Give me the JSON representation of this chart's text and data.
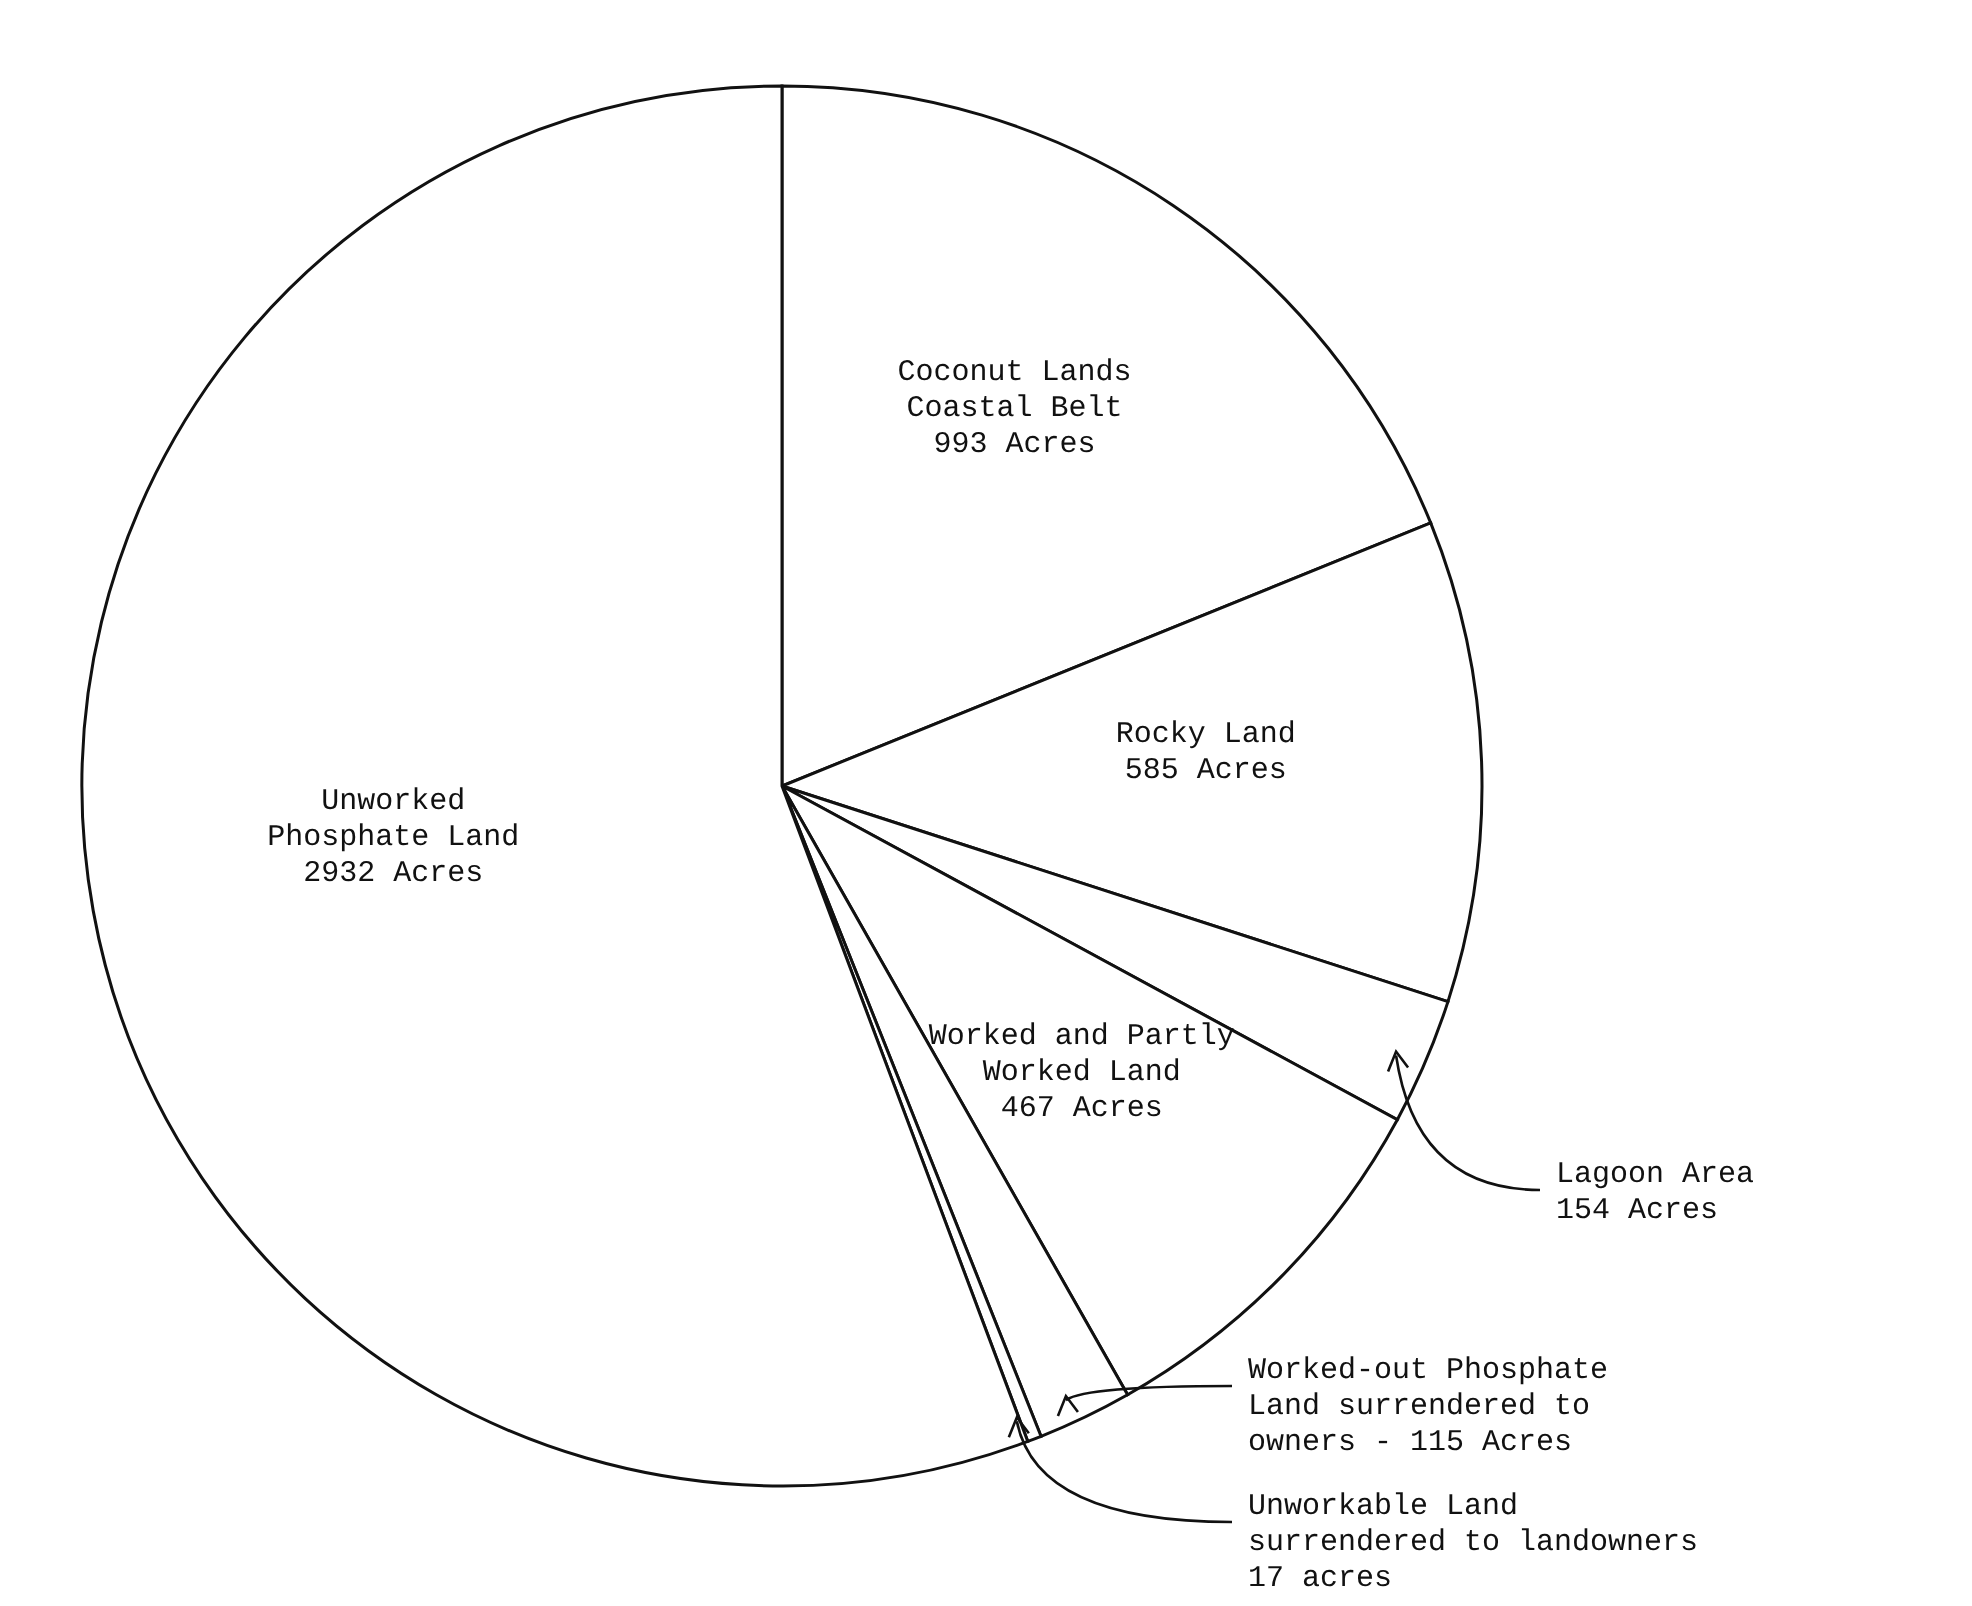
{
  "chart_data": {
    "type": "pie",
    "categories": [
      "Coconut Lands\nCoastal Belt",
      "Rocky Land",
      "Lagoon Area",
      "Worked and Partly\nWorked Land",
      "Worked-out Phosphate\nLand surrendered to\nowners -",
      "Unworkable Land\nsurrendered to landowners",
      "Unworked\nPhosphate Land"
    ],
    "values": [
      993,
      585,
      154,
      467,
      115,
      17,
      2932
    ],
    "value_labels": [
      "993 Acres",
      "585 Acres",
      "154 Acres",
      "467 Acres",
      "115 Acres",
      "17 acres",
      "2932 Acres"
    ],
    "colors": [
      "#ffffff",
      "#ffffff",
      "#ffffff",
      "#ffffff",
      "#ffffff",
      "#ffffff",
      "#ffffff"
    ]
  }
}
